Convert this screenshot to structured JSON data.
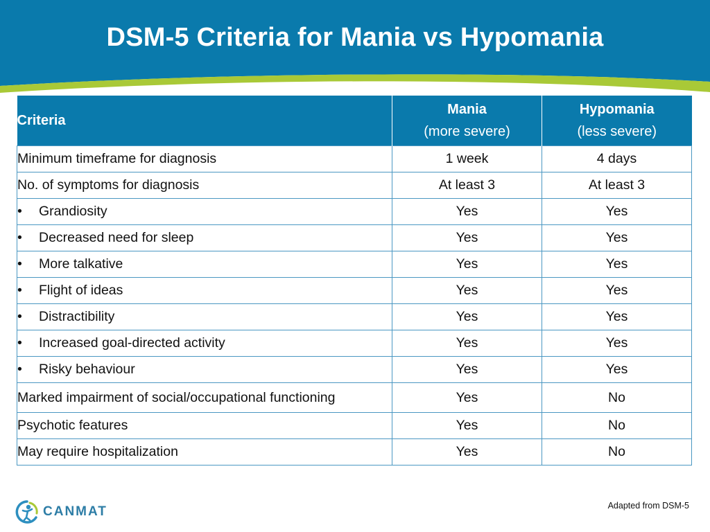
{
  "slide": {
    "title": "DSM-5 Criteria for Mania vs Hypomania",
    "colors": {
      "header_blue": "#0a7aac",
      "accent_green": "#a9c937",
      "border_blue": "#4a97c2"
    }
  },
  "table": {
    "headers": {
      "criteria": "Criteria",
      "mania": "Mania",
      "mania_sub": "(more severe)",
      "hypomania": "Hypomania",
      "hypomania_sub": "(less severe)"
    },
    "rows": [
      {
        "label": "Minimum timeframe for diagnosis",
        "mania": "1 week",
        "hypomania": "4 days"
      },
      {
        "label": "No. of symptoms for diagnosis",
        "mania": "At least 3",
        "hypomania": "At least 3"
      },
      {
        "label": "Grandiosity",
        "mania": "Yes",
        "hypomania": "Yes"
      },
      {
        "label": "Decreased need for sleep",
        "mania": "Yes",
        "hypomania": "Yes"
      },
      {
        "label": "More talkative",
        "mania": "Yes",
        "hypomania": "Yes"
      },
      {
        "label": "Flight of ideas",
        "mania": "Yes",
        "hypomania": "Yes"
      },
      {
        "label": "Distractibility",
        "mania": "Yes",
        "hypomania": "Yes"
      },
      {
        "label": "Increased goal-directed activity",
        "mania": "Yes",
        "hypomania": "Yes"
      },
      {
        "label": "Risky behaviour",
        "mania": "Yes",
        "hypomania": "Yes"
      },
      {
        "label": "Marked impairment of social/occupational functioning",
        "mania": "Yes",
        "hypomania": "No"
      },
      {
        "label": "Psychotic features",
        "mania": "Yes",
        "hypomania": "No"
      },
      {
        "label": "May require hospitalization",
        "mania": "Yes",
        "hypomania": "No"
      }
    ],
    "bullet_glyph": "•"
  },
  "footer": {
    "logo_text": "CANMAT",
    "logo_icon": "canmat-figure-icon",
    "source": "Adapted from DSM-5"
  }
}
